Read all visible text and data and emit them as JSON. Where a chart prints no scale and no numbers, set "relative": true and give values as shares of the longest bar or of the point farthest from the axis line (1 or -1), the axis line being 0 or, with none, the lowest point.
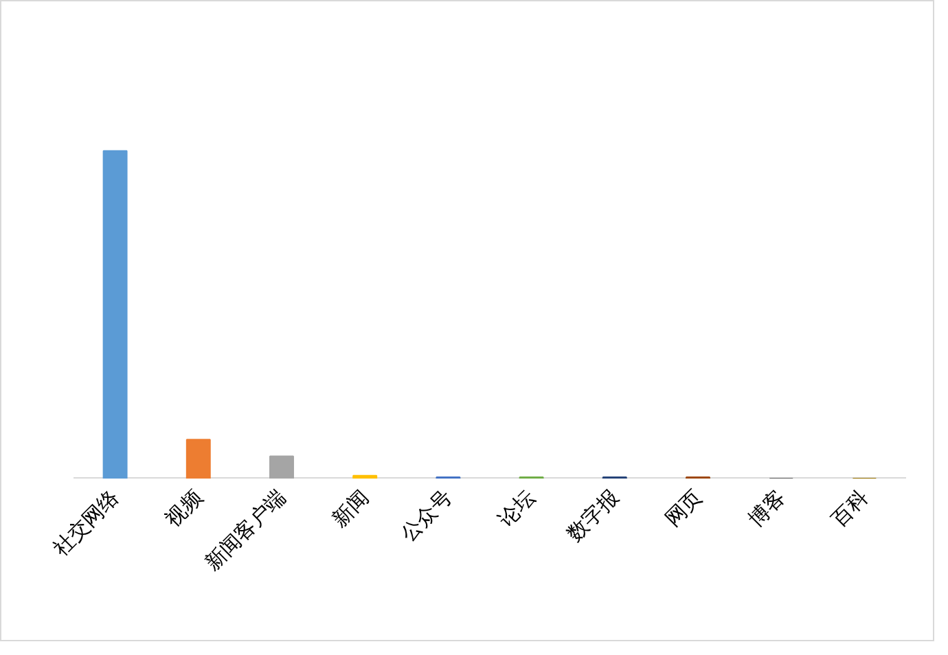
{
  "chart_data": {
    "type": "bar",
    "relative": true,
    "categories": [
      "社交网络",
      "视频",
      "新闻客户端",
      "新闻",
      "公众号",
      "论坛",
      "数字报",
      "网页",
      "博客",
      "百科"
    ],
    "values": [
      1,
      0.119,
      0.068,
      0.009,
      0.004,
      0.004,
      0.004,
      0.004,
      0,
      0
    ],
    "colors": [
      "#5b9bd5",
      "#ed7d31",
      "#a5a5a5",
      "#ffc000",
      "#4472c4",
      "#70ad47",
      "#264478",
      "#9e480e",
      "#636363",
      "#997300"
    ]
  }
}
